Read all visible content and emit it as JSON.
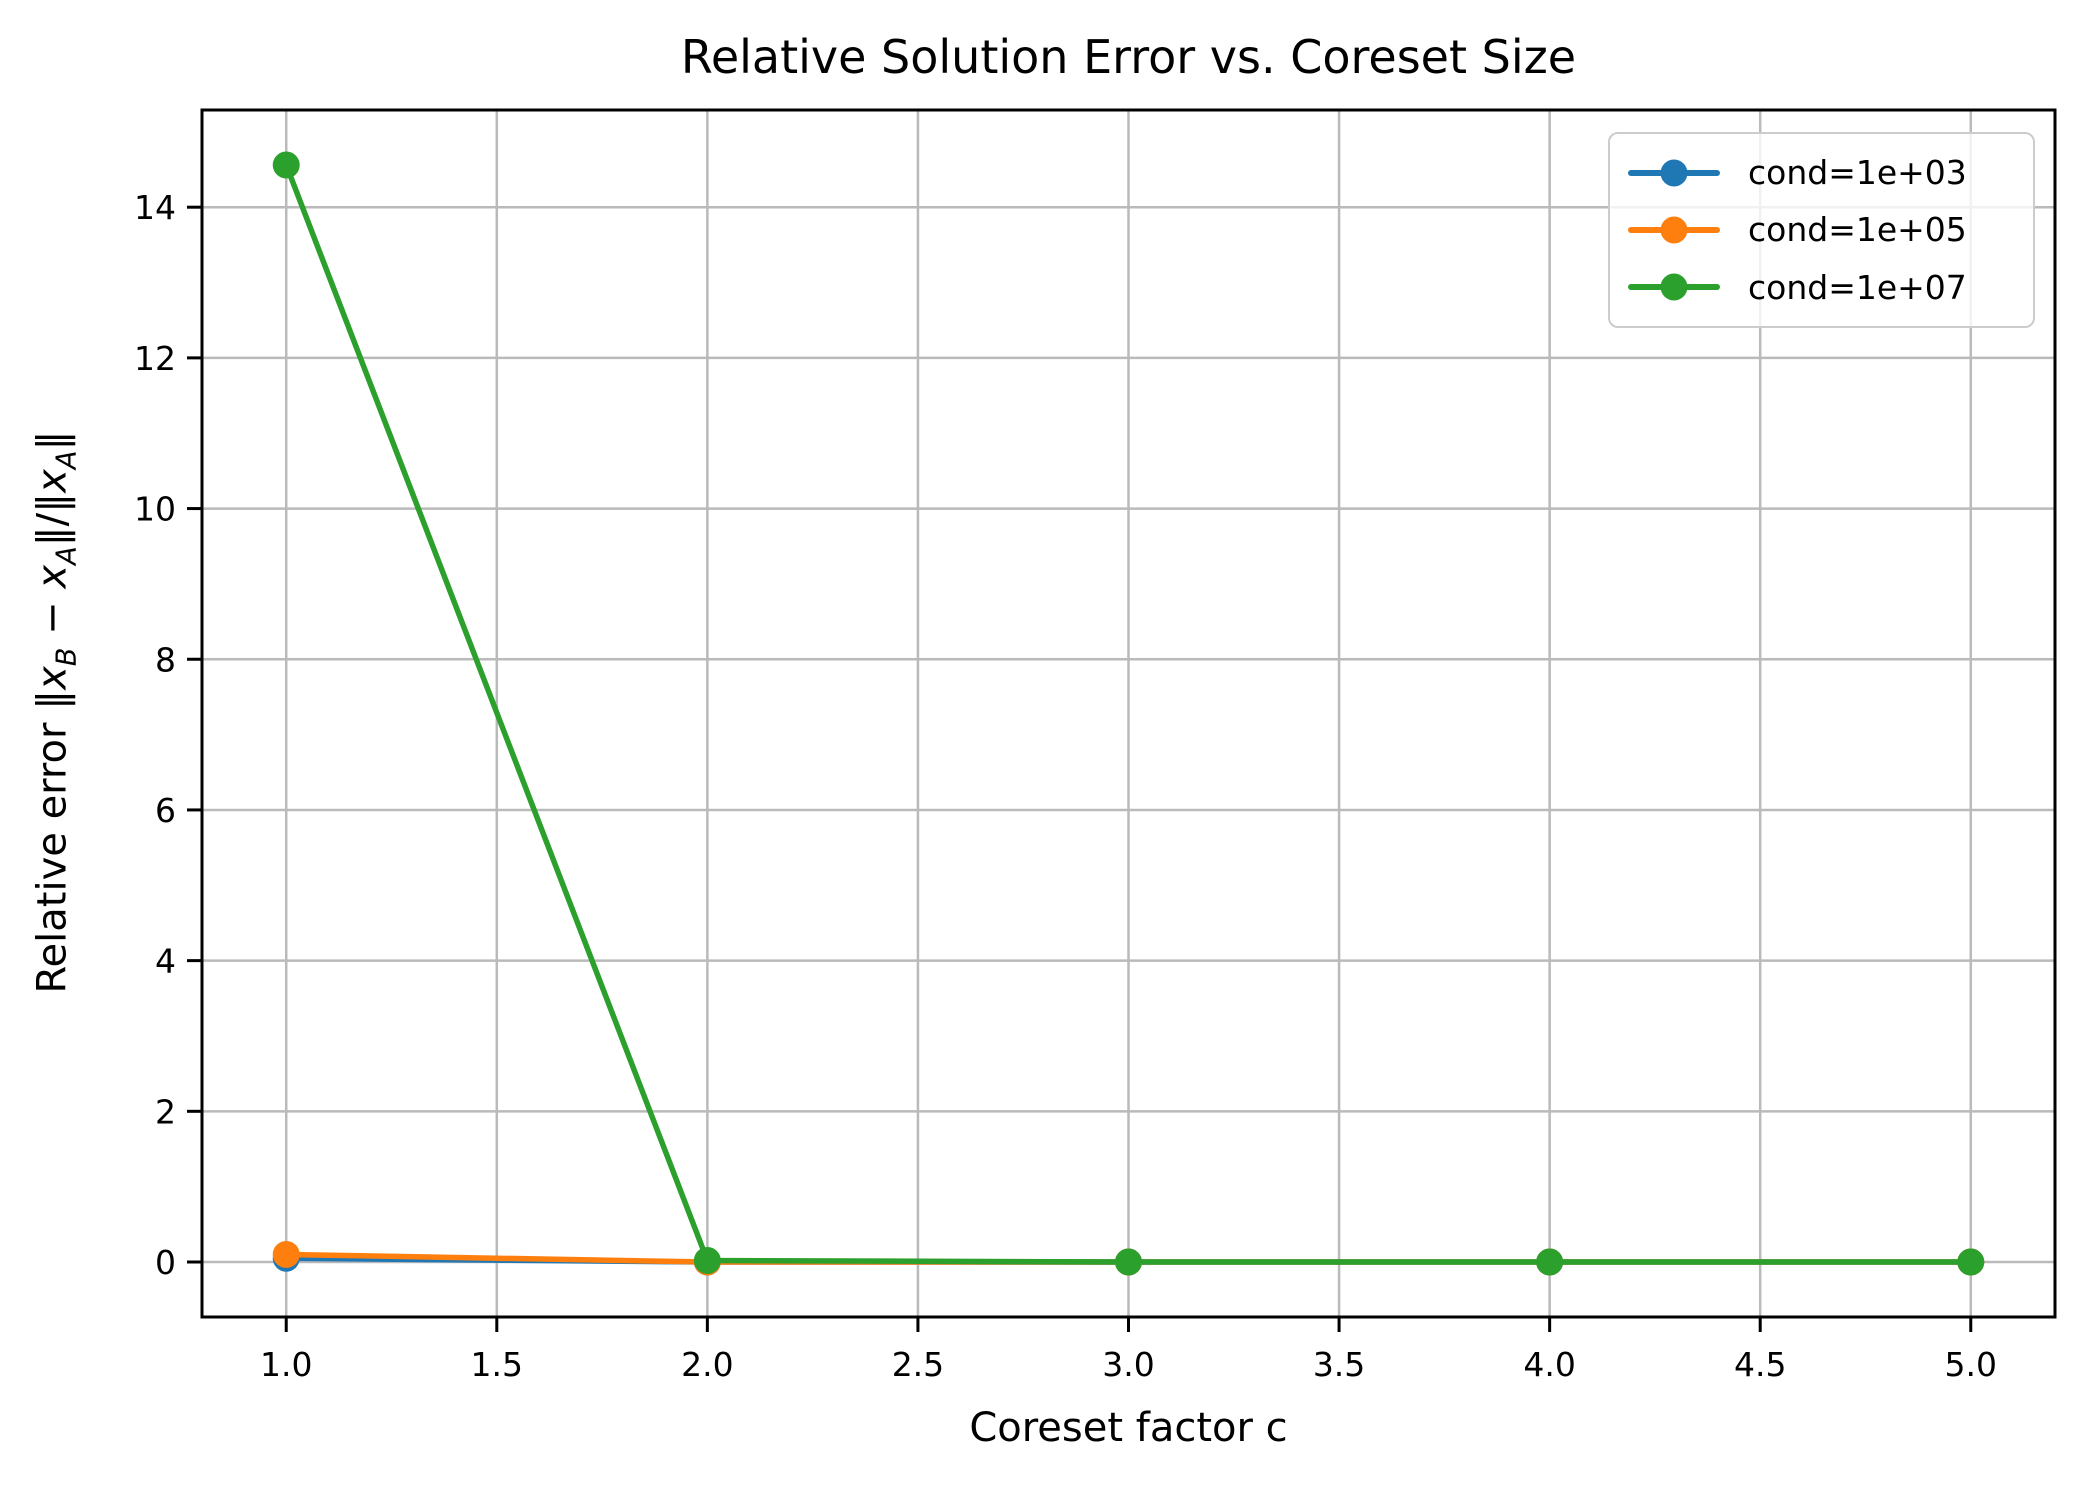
{
  "style": {
    "background": "#ffffff",
    "grid_color": "#bababa",
    "spine_color": "#000000",
    "text_color": "#000000",
    "legend_border": "#cccccc",
    "series_colors": {
      "blue": "#1f77b4",
      "orange": "#ff7f0e",
      "green": "#2ca02c"
    }
  },
  "chart_data": {
    "type": "line",
    "title": "Relative Solution Error vs. Coreset Size",
    "xlabel": "Coreset factor c",
    "ylabel": "Relative error ‖x_B − x_A‖/‖x_A‖",
    "ylabel_segments": [
      {
        "text": "Relative error ‖"
      },
      {
        "text": "x",
        "italic": true
      },
      {
        "text": "B",
        "italic": true,
        "sub": true
      },
      {
        "text": " − "
      },
      {
        "text": "x",
        "italic": true
      },
      {
        "text": "A",
        "italic": true,
        "sub": true
      },
      {
        "text": "‖/‖"
      },
      {
        "text": "x",
        "italic": true
      },
      {
        "text": "A",
        "italic": true,
        "sub": true
      },
      {
        "text": "‖"
      }
    ],
    "x": [
      1.0,
      2.0,
      3.0,
      4.0,
      5.0
    ],
    "series": [
      {
        "name": "cond=1e+03",
        "color": "#1f77b4",
        "values": [
          0.05,
          0.0,
          0.0,
          0.0,
          0.0
        ]
      },
      {
        "name": "cond=1e+05",
        "color": "#ff7f0e",
        "values": [
          0.1,
          0.0,
          0.0,
          0.0,
          0.0
        ]
      },
      {
        "name": "cond=1e+07",
        "color": "#2ca02c",
        "values": [
          14.56,
          0.02,
          0.0,
          0.0,
          0.0
        ]
      }
    ],
    "marker": "o",
    "grid": true,
    "legend_position": "upper right",
    "xticks": {
      "values": [
        1.0,
        1.5,
        2.0,
        2.5,
        3.0,
        3.5,
        4.0,
        4.5,
        5.0
      ],
      "labels": [
        "1.0",
        "1.5",
        "2.0",
        "2.5",
        "3.0",
        "3.5",
        "4.0",
        "4.5",
        "5.0"
      ]
    },
    "yticks": {
      "values": [
        0,
        2,
        4,
        6,
        8,
        10,
        12,
        14
      ],
      "labels": [
        "0",
        "2",
        "4",
        "6",
        "8",
        "10",
        "12",
        "14"
      ]
    },
    "xlim": [
      0.8,
      5.2
    ],
    "ylim": [
      -0.73,
      15.29
    ]
  }
}
